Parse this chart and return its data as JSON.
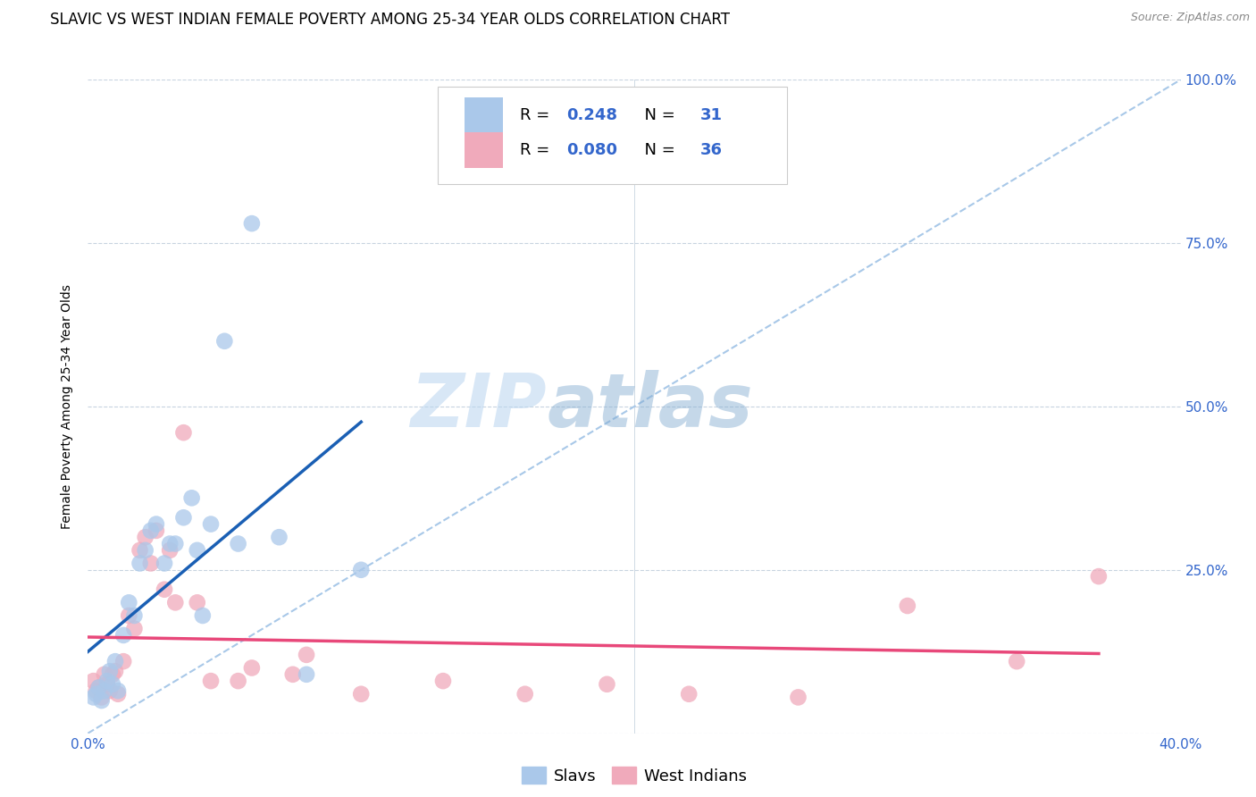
{
  "title": "SLAVIC VS WEST INDIAN FEMALE POVERTY AMONG 25-34 YEAR OLDS CORRELATION CHART",
  "source": "Source: ZipAtlas.com",
  "ylabel": "Female Poverty Among 25-34 Year Olds",
  "xlim": [
    0.0,
    0.4
  ],
  "ylim": [
    0.0,
    1.0
  ],
  "xticks": [
    0.0,
    0.1,
    0.2,
    0.3,
    0.4
  ],
  "xticklabels": [
    "0.0%",
    "",
    "",
    "",
    "40.0%"
  ],
  "yticks": [
    0.0,
    0.25,
    0.5,
    0.75,
    1.0
  ],
  "yticklabels_right": [
    "",
    "25.0%",
    "50.0%",
    "75.0%",
    "100.0%"
  ],
  "slavs_x": [
    0.002,
    0.003,
    0.004,
    0.005,
    0.006,
    0.007,
    0.008,
    0.009,
    0.01,
    0.011,
    0.013,
    0.015,
    0.017,
    0.019,
    0.021,
    0.023,
    0.025,
    0.028,
    0.03,
    0.032,
    0.035,
    0.038,
    0.04,
    0.042,
    0.045,
    0.05,
    0.055,
    0.06,
    0.07,
    0.08,
    0.1
  ],
  "slavs_y": [
    0.055,
    0.06,
    0.07,
    0.05,
    0.065,
    0.08,
    0.095,
    0.075,
    0.11,
    0.065,
    0.15,
    0.2,
    0.18,
    0.26,
    0.28,
    0.31,
    0.32,
    0.26,
    0.29,
    0.29,
    0.33,
    0.36,
    0.28,
    0.18,
    0.32,
    0.6,
    0.29,
    0.78,
    0.3,
    0.09,
    0.25
  ],
  "west_indians_x": [
    0.002,
    0.003,
    0.004,
    0.005,
    0.006,
    0.007,
    0.008,
    0.009,
    0.01,
    0.011,
    0.013,
    0.015,
    0.017,
    0.019,
    0.021,
    0.023,
    0.025,
    0.028,
    0.03,
    0.032,
    0.035,
    0.04,
    0.045,
    0.055,
    0.06,
    0.075,
    0.08,
    0.1,
    0.13,
    0.16,
    0.19,
    0.22,
    0.26,
    0.3,
    0.34,
    0.37
  ],
  "west_indians_y": [
    0.08,
    0.065,
    0.07,
    0.055,
    0.09,
    0.075,
    0.065,
    0.09,
    0.095,
    0.06,
    0.11,
    0.18,
    0.16,
    0.28,
    0.3,
    0.26,
    0.31,
    0.22,
    0.28,
    0.2,
    0.46,
    0.2,
    0.08,
    0.08,
    0.1,
    0.09,
    0.12,
    0.06,
    0.08,
    0.06,
    0.075,
    0.06,
    0.055,
    0.195,
    0.11,
    0.24
  ],
  "slavs_color": "#aac8ea",
  "west_indians_color": "#f0aabb",
  "slavs_line_color": "#1a5fb4",
  "west_indians_line_color": "#e8487a",
  "dashed_line_color": "#a8c8e8",
  "background_color": "#ffffff",
  "grid_color": "#c8d4e0",
  "R_slavs": 0.248,
  "N_slavs": 31,
  "R_west": 0.08,
  "N_west": 36,
  "watermark_zip": "ZIP",
  "watermark_atlas": "atlas",
  "title_fontsize": 12,
  "axis_label_fontsize": 10,
  "tick_fontsize": 11,
  "legend_fontsize": 13
}
